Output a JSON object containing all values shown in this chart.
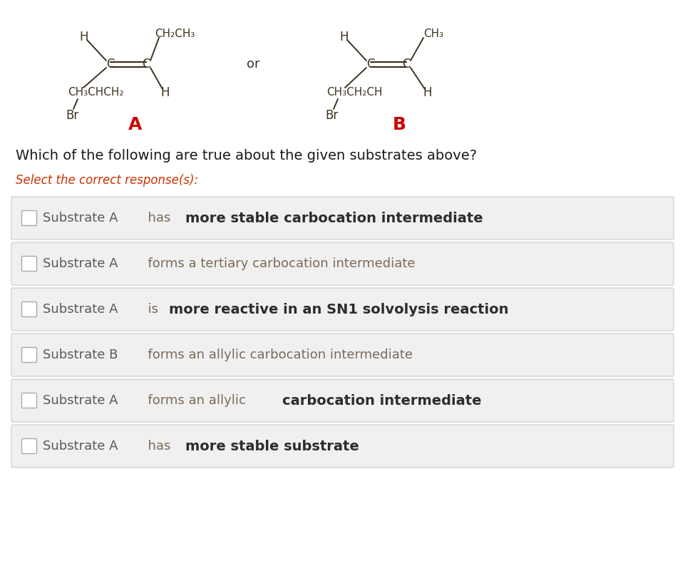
{
  "bg_color": "#ffffff",
  "question_text": "Which of the following are true about the given substrates above?",
  "select_text": "Select the correct response(s):",
  "mol_color": "#3d3320",
  "options": [
    {
      "segments": [
        {
          "text": "Substrate A",
          "bold": false,
          "color": "#5a5a5a",
          "size": 13
        },
        {
          "text": "  has ",
          "bold": false,
          "color": "#7a6a5a",
          "size": 13
        },
        {
          "text": "more stable carbocation intermediate",
          "bold": true,
          "color": "#2d2d2d",
          "size": 14
        }
      ]
    },
    {
      "segments": [
        {
          "text": "Substrate A",
          "bold": false,
          "color": "#5a5a5a",
          "size": 13
        },
        {
          "text": "  forms a tertiary carbocation intermediate",
          "bold": false,
          "color": "#7a6a5a",
          "size": 13
        }
      ]
    },
    {
      "segments": [
        {
          "text": "Substrate A",
          "bold": false,
          "color": "#5a5a5a",
          "size": 13
        },
        {
          "text": "  is ",
          "bold": false,
          "color": "#7a6a5a",
          "size": 13
        },
        {
          "text": "more reactive in an SN1 solvolysis reaction",
          "bold": true,
          "color": "#2d2d2d",
          "size": 14
        }
      ]
    },
    {
      "segments": [
        {
          "text": "Substrate B",
          "bold": false,
          "color": "#5a5a5a",
          "size": 13
        },
        {
          "text": "  forms an allylic carbocation intermediate",
          "bold": false,
          "color": "#7a6a5a",
          "size": 13
        }
      ]
    },
    {
      "segments": [
        {
          "text": "Substrate A",
          "bold": false,
          "color": "#5a5a5a",
          "size": 13
        },
        {
          "text": "  forms an allylic ",
          "bold": false,
          "color": "#7a6a5a",
          "size": 13
        },
        {
          "text": "carbocation intermediate",
          "bold": true,
          "color": "#2d2d2d",
          "size": 14
        }
      ]
    },
    {
      "segments": [
        {
          "text": "Substrate A",
          "bold": false,
          "color": "#5a5a5a",
          "size": 13
        },
        {
          "text": "  has ",
          "bold": false,
          "color": "#7a6a5a",
          "size": 13
        },
        {
          "text": "more stable substrate",
          "bold": true,
          "color": "#2d2d2d",
          "size": 14
        }
      ]
    }
  ],
  "option_box_color": "#f0f0f0",
  "option_box_edge_color": "#cccccc",
  "checkbox_color": "#ffffff",
  "checkbox_edge": "#aaaaaa",
  "label_A_color": "#cc0000",
  "label_B_color": "#cc0000",
  "question_color": "#1a1a1a",
  "select_color": "#cc3300"
}
